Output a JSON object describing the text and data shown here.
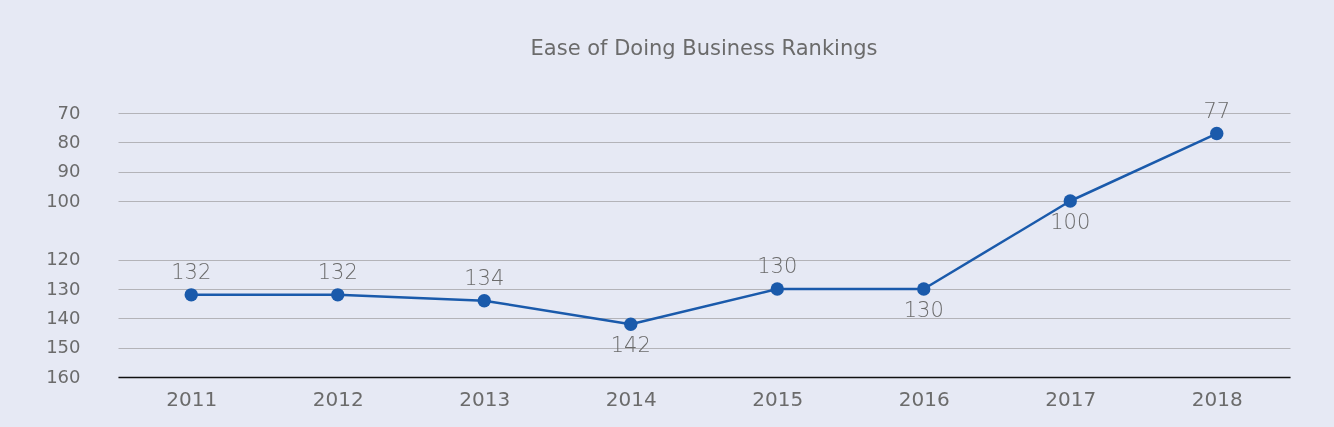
{
  "chart_data": {
    "type": "line",
    "title": "Ease of Doing Business Rankings",
    "categories": [
      "2011",
      "2012",
      "2013",
      "2014",
      "2015",
      "2016",
      "2017",
      "2018"
    ],
    "series": [
      {
        "color": "#1a5aab",
        "values": [
          132,
          132,
          134,
          142,
          130,
          130,
          100,
          77
        ]
      }
    ],
    "ylim": [
      160,
      70
    ],
    "yticks": [
      70,
      80,
      90,
      100,
      120,
      130,
      140,
      150,
      160
    ],
    "grid": "y",
    "marker": "circle",
    "line_style": "solid",
    "data_labels": true
  }
}
